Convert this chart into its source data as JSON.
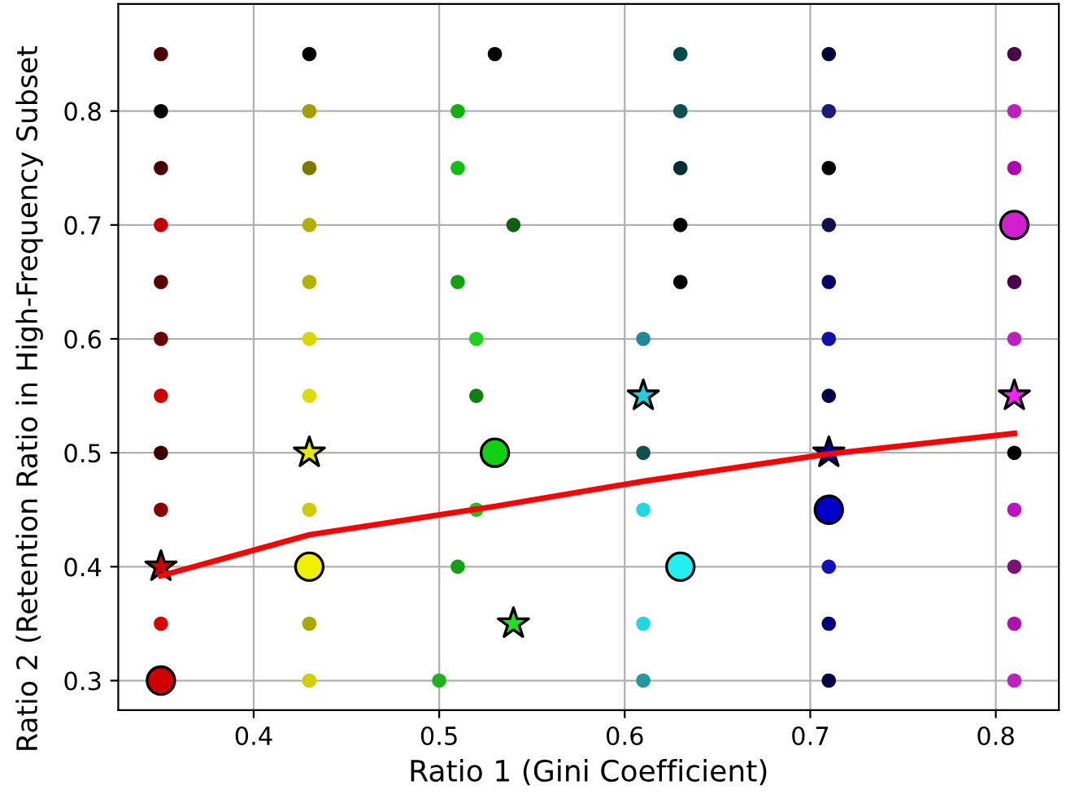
{
  "chart_data": {
    "type": "scatter",
    "xlabel": "Ratio 1 (Gini Coefficient)",
    "ylabel": "Ratio 2 (Retention Ratio in High-Frequency Subset",
    "xlim": [
      0.327,
      0.834
    ],
    "ylim": [
      0.274,
      0.894
    ],
    "xticks": [
      0.4,
      0.5,
      0.6,
      0.7,
      0.8
    ],
    "yticks": [
      0.3,
      0.4,
      0.5,
      0.6,
      0.7,
      0.8
    ],
    "grid": true,
    "series": [
      {
        "marker": "circle",
        "x": [
          0.35,
          0.35,
          0.35,
          0.35,
          0.35,
          0.35,
          0.35,
          0.35,
          0.35,
          0.35,
          0.43,
          0.43,
          0.43,
          0.43,
          0.43,
          0.43,
          0.43,
          0.43,
          0.43,
          0.43,
          0.53,
          0.51,
          0.51,
          0.54,
          0.51,
          0.52,
          0.52,
          0.52,
          0.51,
          0.5,
          0.63,
          0.63,
          0.63,
          0.63,
          0.63,
          0.61,
          0.61,
          0.61,
          0.61,
          0.61,
          0.71,
          0.71,
          0.71,
          0.71,
          0.71,
          0.71,
          0.71,
          0.71,
          0.71,
          0.71,
          0.81,
          0.81,
          0.81,
          0.81,
          0.81,
          0.81,
          0.81,
          0.81,
          0.81,
          0.81
        ],
        "values": [
          0.85,
          0.8,
          0.75,
          0.7,
          0.65,
          0.6,
          0.55,
          0.5,
          0.45,
          0.35,
          0.85,
          0.8,
          0.75,
          0.7,
          0.65,
          0.6,
          0.55,
          0.45,
          0.35,
          0.3,
          0.85,
          0.8,
          0.75,
          0.7,
          0.65,
          0.6,
          0.55,
          0.45,
          0.4,
          0.3,
          0.85,
          0.8,
          0.75,
          0.7,
          0.65,
          0.6,
          0.5,
          0.45,
          0.35,
          0.3,
          0.85,
          0.8,
          0.75,
          0.7,
          0.65,
          0.6,
          0.55,
          0.4,
          0.35,
          0.3,
          0.85,
          0.8,
          0.75,
          0.65,
          0.6,
          0.5,
          0.45,
          0.4,
          0.35,
          0.3
        ],
        "colors": [
          "#4a0000",
          "#000000",
          "#4a0000",
          "#c00000",
          "#5a0000",
          "#6a0000",
          "#d00000",
          "#3a0000",
          "#8a0000",
          "#d80000",
          "#000000",
          "#a0a000",
          "#7a7a00",
          "#b0b000",
          "#b8b000",
          "#d8d800",
          "#dcdc00",
          "#cccc00",
          "#a8a800",
          "#d0d000",
          "#000000",
          "#10b010",
          "#10c010",
          "#106010",
          "#10a010",
          "#20d020",
          "#108010",
          "#20c020",
          "#10a010",
          "#20b020",
          "#004a4a",
          "#105050",
          "#003030",
          "#000000",
          "#000000",
          "#208a9a",
          "#105050",
          "#20d8e0",
          "#20d8e0",
          "#209aa0",
          "#00003a",
          "#1a1a7a",
          "#000000",
          "#10104a",
          "#00006a",
          "#1010b0",
          "#00004a",
          "#1010c0",
          "#00007a",
          "#00004a",
          "#4a004a",
          "#c020c0",
          "#b000b0",
          "#4a004a",
          "#c020c0",
          "#000000",
          "#c010c0",
          "#7a107a",
          "#b010b0",
          "#c020c0"
        ]
      },
      {
        "type": "bubble",
        "marker": "circle",
        "x": [
          0.35,
          0.43,
          0.53,
          0.63,
          0.71,
          0.81
        ],
        "values": [
          0.3,
          0.4,
          0.5,
          0.4,
          0.45,
          0.7
        ],
        "sizes": [
          1,
          1,
          1,
          1,
          1,
          1
        ],
        "colors": [
          "#d00000",
          "#f0f000",
          "#10d010",
          "#20f0f0",
          "#0000c8",
          "#d020d0"
        ]
      },
      {
        "marker": "star",
        "x": [
          0.35,
          0.43,
          0.54,
          0.61,
          0.71,
          0.81
        ],
        "values": [
          0.4,
          0.5,
          0.35,
          0.55,
          0.5,
          0.55
        ],
        "colors": [
          "#d00000",
          "#e8e800",
          "#20e020",
          "#20d0e0",
          "#0000c0",
          "#ff20ff"
        ]
      },
      {
        "type": "line",
        "color": "#ff0000",
        "line_style": "solid",
        "marker": "none",
        "x": [
          0.35,
          0.43,
          0.53,
          0.61,
          0.71,
          0.81
        ],
        "values": [
          0.392,
          0.428,
          0.453,
          0.475,
          0.499,
          0.517
        ]
      }
    ]
  }
}
